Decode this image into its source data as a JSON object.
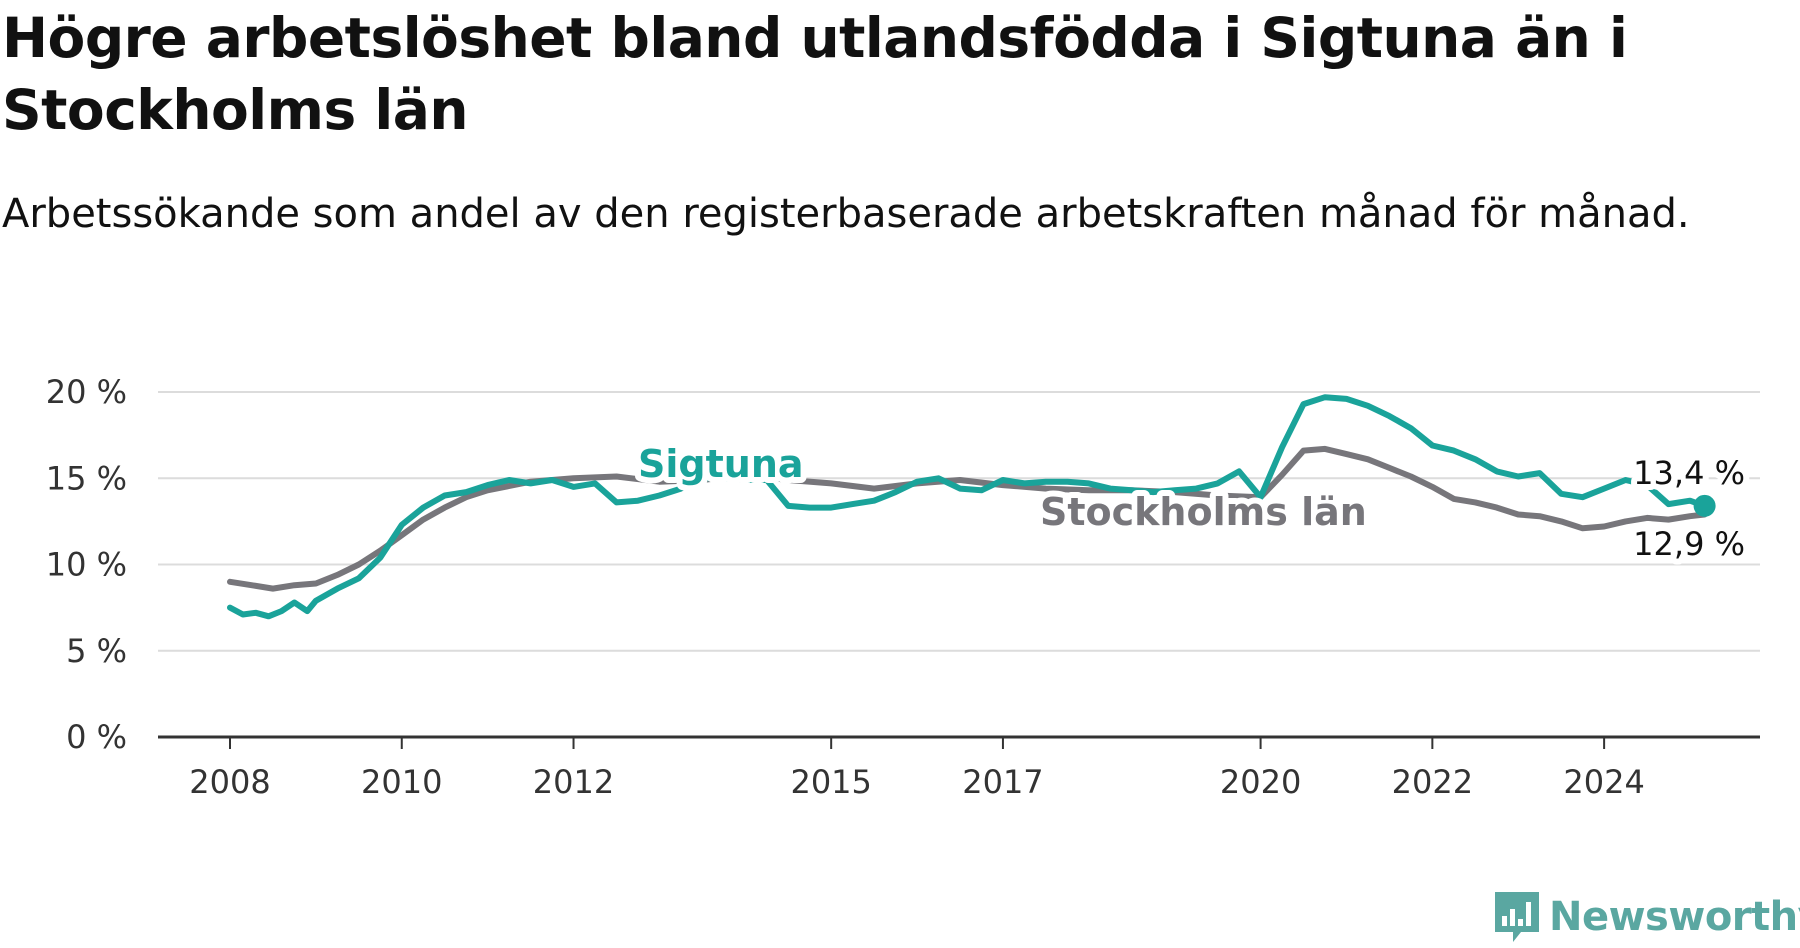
{
  "header": {
    "title": "Högre arbetslöshet bland utlandsfödda i Sigtuna än i Stockholms län",
    "subtitle": "Arbetssökande som andel av den registerbaserade arbetskraften månad för månad."
  },
  "brand": {
    "name": "Newsworthy",
    "color": "#5aa7a1",
    "icon": "bar-chart-speech-bubble-icon"
  },
  "chart_data": {
    "type": "line",
    "title": "Högre arbetslöshet bland utlandsfödda i Sigtuna än i Stockholms län",
    "subtitle": "Arbetssökande som andel av den registerbaserade arbetskraften månad för månad.",
    "xlabel": "",
    "ylabel": "",
    "ylim": [
      0,
      20
    ],
    "xlim": [
      2008,
      2025.6
    ],
    "grid": true,
    "legend": "inline labels",
    "y_ticks": [
      0,
      5,
      10,
      15,
      20
    ],
    "y_tick_labels": [
      "0 %",
      "5 %",
      "10 %",
      "15 %",
      "20 %"
    ],
    "x_ticks": [
      2008,
      2010,
      2012,
      2015,
      2017,
      2020,
      2022,
      2024
    ],
    "x_tick_labels": [
      "2008",
      "2010",
      "2012",
      "2015",
      "2017",
      "2020",
      "2022",
      "2024"
    ],
    "series": [
      {
        "name": "Stockholms län",
        "color": "#77767b",
        "end_label": "12,9 %",
        "points": [
          [
            2008.0,
            9.0
          ],
          [
            2008.25,
            8.8
          ],
          [
            2008.5,
            8.6
          ],
          [
            2008.75,
            8.8
          ],
          [
            2009.0,
            8.9
          ],
          [
            2009.25,
            9.4
          ],
          [
            2009.5,
            10.0
          ],
          [
            2009.75,
            10.8
          ],
          [
            2010.0,
            11.7
          ],
          [
            2010.25,
            12.6
          ],
          [
            2010.5,
            13.3
          ],
          [
            2010.75,
            13.9
          ],
          [
            2011.0,
            14.3
          ],
          [
            2011.5,
            14.8
          ],
          [
            2012.0,
            15.0
          ],
          [
            2012.5,
            15.1
          ],
          [
            2013.0,
            14.8
          ],
          [
            2013.5,
            14.9
          ],
          [
            2014.0,
            15.2
          ],
          [
            2014.5,
            14.9
          ],
          [
            2015.0,
            14.7
          ],
          [
            2015.5,
            14.4
          ],
          [
            2016.0,
            14.7
          ],
          [
            2016.5,
            14.9
          ],
          [
            2017.0,
            14.6
          ],
          [
            2017.5,
            14.4
          ],
          [
            2018.0,
            14.3
          ],
          [
            2018.5,
            14.3
          ],
          [
            2019.0,
            14.2
          ],
          [
            2019.5,
            14.0
          ],
          [
            2020.0,
            13.9
          ],
          [
            2020.25,
            15.2
          ],
          [
            2020.5,
            16.6
          ],
          [
            2020.75,
            16.7
          ],
          [
            2021.0,
            16.4
          ],
          [
            2021.25,
            16.1
          ],
          [
            2021.5,
            15.6
          ],
          [
            2021.75,
            15.1
          ],
          [
            2022.0,
            14.5
          ],
          [
            2022.25,
            13.8
          ],
          [
            2022.5,
            13.6
          ],
          [
            2022.75,
            13.3
          ],
          [
            2023.0,
            12.9
          ],
          [
            2023.25,
            12.8
          ],
          [
            2023.5,
            12.5
          ],
          [
            2023.75,
            12.1
          ],
          [
            2024.0,
            12.2
          ],
          [
            2024.25,
            12.5
          ],
          [
            2024.5,
            12.7
          ],
          [
            2024.75,
            12.6
          ],
          [
            2025.0,
            12.8
          ],
          [
            2025.17,
            12.9
          ]
        ]
      },
      {
        "name": "Sigtuna",
        "color": "#1aa39a",
        "end_label": "13,4 %",
        "points": [
          [
            2008.0,
            7.5
          ],
          [
            2008.15,
            7.1
          ],
          [
            2008.3,
            7.2
          ],
          [
            2008.45,
            7.0
          ],
          [
            2008.6,
            7.3
          ],
          [
            2008.75,
            7.8
          ],
          [
            2008.9,
            7.3
          ],
          [
            2009.0,
            7.9
          ],
          [
            2009.25,
            8.6
          ],
          [
            2009.5,
            9.2
          ],
          [
            2009.75,
            10.4
          ],
          [
            2010.0,
            12.3
          ],
          [
            2010.25,
            13.3
          ],
          [
            2010.5,
            14.0
          ],
          [
            2010.75,
            14.2
          ],
          [
            2011.0,
            14.6
          ],
          [
            2011.25,
            14.9
          ],
          [
            2011.5,
            14.7
          ],
          [
            2011.75,
            14.9
          ],
          [
            2012.0,
            14.5
          ],
          [
            2012.25,
            14.7
          ],
          [
            2012.5,
            13.6
          ],
          [
            2012.75,
            13.7
          ],
          [
            2013.0,
            14.0
          ],
          [
            2013.25,
            14.4
          ],
          [
            2013.5,
            15.0
          ],
          [
            2013.75,
            15.0
          ],
          [
            2014.0,
            14.9
          ],
          [
            2014.25,
            14.9
          ],
          [
            2014.5,
            13.4
          ],
          [
            2014.75,
            13.3
          ],
          [
            2015.0,
            13.3
          ],
          [
            2015.25,
            13.5
          ],
          [
            2015.5,
            13.7
          ],
          [
            2015.75,
            14.2
          ],
          [
            2016.0,
            14.8
          ],
          [
            2016.25,
            15.0
          ],
          [
            2016.5,
            14.4
          ],
          [
            2016.75,
            14.3
          ],
          [
            2017.0,
            14.9
          ],
          [
            2017.25,
            14.7
          ],
          [
            2017.5,
            14.8
          ],
          [
            2017.75,
            14.8
          ],
          [
            2018.0,
            14.7
          ],
          [
            2018.25,
            14.4
          ],
          [
            2018.5,
            14.3
          ],
          [
            2018.75,
            14.2
          ],
          [
            2019.0,
            14.3
          ],
          [
            2019.25,
            14.4
          ],
          [
            2019.5,
            14.7
          ],
          [
            2019.75,
            15.4
          ],
          [
            2020.0,
            13.9
          ],
          [
            2020.25,
            16.8
          ],
          [
            2020.5,
            19.3
          ],
          [
            2020.75,
            19.7
          ],
          [
            2021.0,
            19.6
          ],
          [
            2021.25,
            19.2
          ],
          [
            2021.5,
            18.6
          ],
          [
            2021.75,
            17.9
          ],
          [
            2022.0,
            16.9
          ],
          [
            2022.25,
            16.6
          ],
          [
            2022.5,
            16.1
          ],
          [
            2022.75,
            15.4
          ],
          [
            2023.0,
            15.1
          ],
          [
            2023.25,
            15.3
          ],
          [
            2023.5,
            14.1
          ],
          [
            2023.75,
            13.9
          ],
          [
            2024.0,
            14.4
          ],
          [
            2024.25,
            14.9
          ],
          [
            2024.5,
            14.6
          ],
          [
            2024.75,
            13.5
          ],
          [
            2025.0,
            13.7
          ],
          [
            2025.17,
            13.4
          ]
        ]
      }
    ]
  }
}
